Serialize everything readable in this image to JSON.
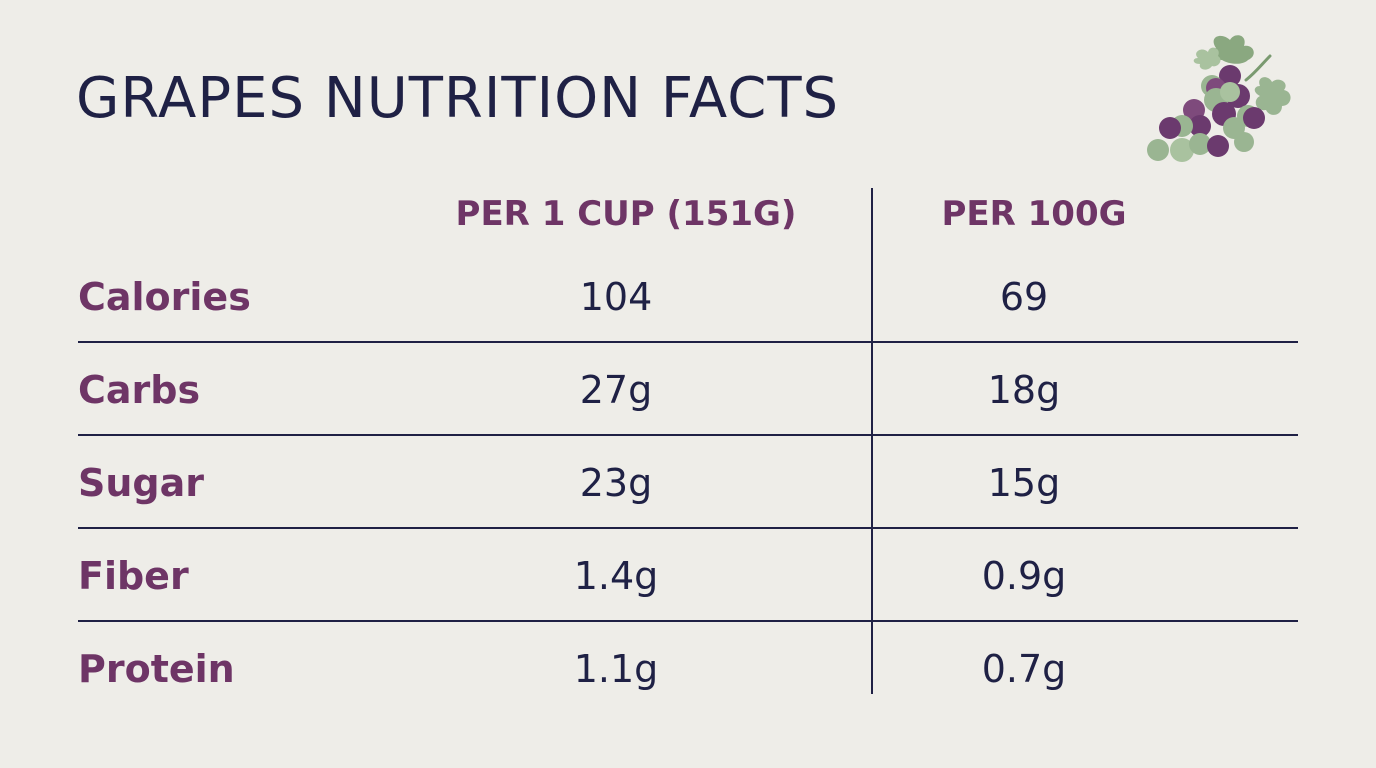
{
  "title": "GRAPES NUTRITION FACTS",
  "columns": [
    "PER 1 CUP (151G)",
    "PER 100G"
  ],
  "rows": [
    {
      "label": "Calories",
      "per_cup": "104",
      "per_100g": "69"
    },
    {
      "label": "Carbs",
      "per_cup": "27g",
      "per_100g": "18g"
    },
    {
      "label": "Sugar",
      "per_cup": "23g",
      "per_100g": "15g"
    },
    {
      "label": "Fiber",
      "per_cup": "1.4g",
      "per_100g": "0.9g"
    },
    {
      "label": "Protein",
      "per_cup": "1.1g",
      "per_100g": "0.7g"
    }
  ],
  "illustration": "grape-bunch-icon",
  "colors": {
    "background": "#eeede8",
    "title": "#1f2145",
    "accent": "#6e3566",
    "values": "#1f2145",
    "grape_purple": "#6b3a6e",
    "grape_green": "#9ab592",
    "leaf": "#8aa880"
  }
}
